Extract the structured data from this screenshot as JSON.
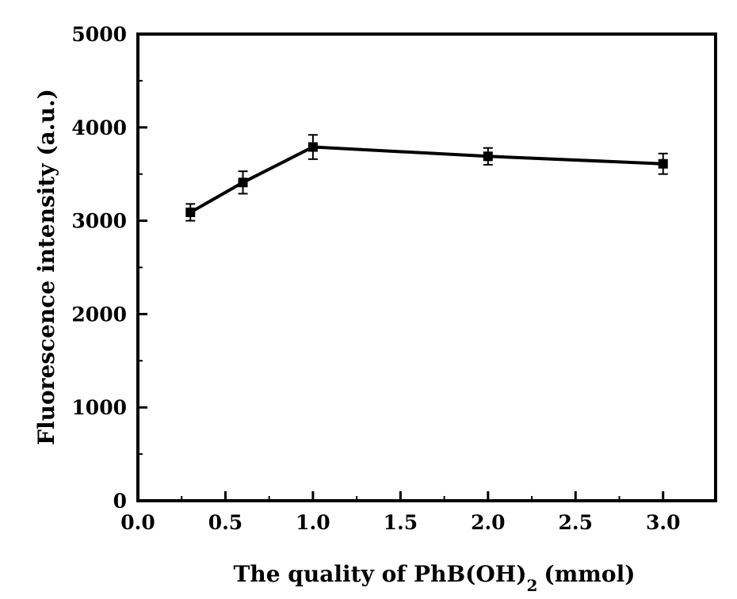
{
  "chart_data": {
    "type": "line",
    "title": "",
    "xlabel": "The quality of PhB(OH)",
    "xlabel_subscript": "2",
    "xlabel_unit": "(mmol)",
    "ylabel": "Fluorescence intensity (a.u.)",
    "xlim": [
      0.0,
      3.3
    ],
    "ylim": [
      0,
      5000
    ],
    "xticks": [
      0.0,
      0.5,
      1.0,
      1.5,
      2.0,
      2.5,
      3.0
    ],
    "xtick_labels": [
      "0.0",
      "0.5",
      "1.0",
      "1.5",
      "2.0",
      "2.5",
      "3.0"
    ],
    "yticks": [
      0,
      1000,
      2000,
      3000,
      4000,
      5000
    ],
    "ytick_labels": [
      "0",
      "1000",
      "2000",
      "3000",
      "4000",
      "5000"
    ],
    "grid": false,
    "series": [
      {
        "x": [
          0.3,
          0.6,
          1.0,
          2.0,
          3.0
        ],
        "y": [
          3090,
          3410,
          3790,
          3690,
          3610
        ],
        "yerr": [
          90,
          120,
          130,
          90,
          110
        ],
        "marker": "square",
        "color": "#000000"
      }
    ]
  }
}
